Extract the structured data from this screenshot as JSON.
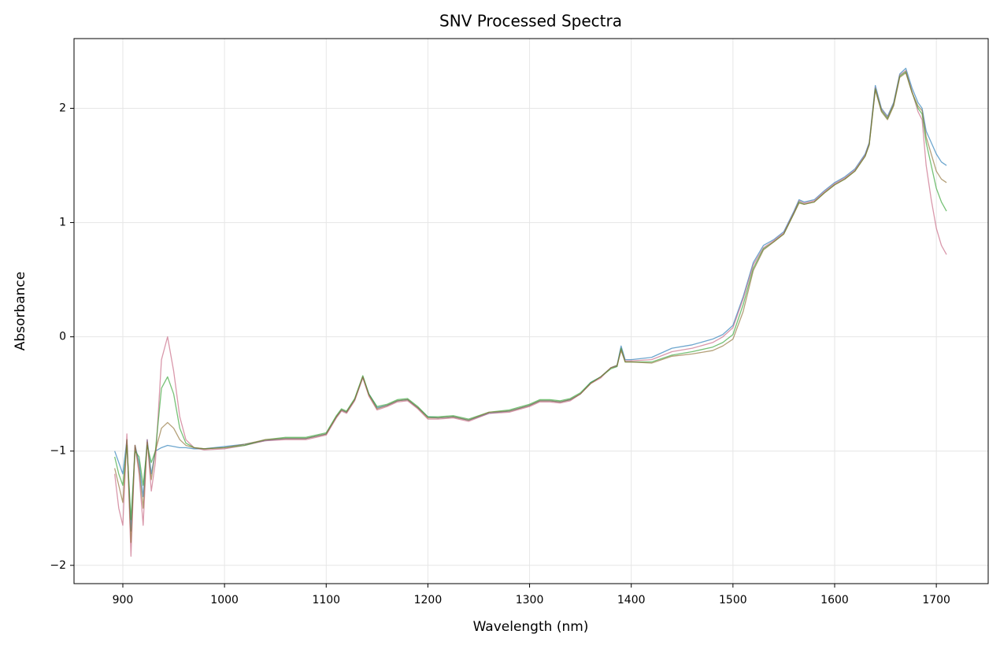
{
  "chart_data": {
    "type": "line",
    "title": "SNV Processed Spectra",
    "x_label": "Wavelength (nm)",
    "y_label": "Absorbance",
    "xlim": [
      852,
      1751
    ],
    "ylim": [
      -2.16,
      2.61
    ],
    "xticks": [
      900,
      1000,
      1100,
      1200,
      1300,
      1400,
      1500,
      1600,
      1700
    ],
    "yticks": [
      {
        "value": -2,
        "label": "−2"
      },
      {
        "value": -1,
        "label": "−1"
      },
      0,
      1,
      2
    ],
    "grid": true,
    "x": [
      892,
      896,
      900,
      904,
      908,
      912,
      916,
      920,
      924,
      928,
      932,
      938,
      944,
      950,
      956,
      962,
      970,
      980,
      1000,
      1020,
      1040,
      1060,
      1080,
      1100,
      1110,
      1115,
      1120,
      1128,
      1136,
      1142,
      1150,
      1160,
      1170,
      1180,
      1190,
      1200,
      1210,
      1225,
      1240,
      1260,
      1280,
      1300,
      1310,
      1320,
      1330,
      1340,
      1350,
      1360,
      1370,
      1380,
      1386,
      1390,
      1394,
      1400,
      1420,
      1440,
      1460,
      1480,
      1490,
      1500,
      1510,
      1520,
      1530,
      1540,
      1550,
      1560,
      1565,
      1570,
      1580,
      1590,
      1600,
      1610,
      1620,
      1630,
      1634,
      1640,
      1646,
      1652,
      1658,
      1664,
      1670,
      1676,
      1682,
      1686,
      1690,
      1695,
      1700,
      1705,
      1710
    ],
    "series": [
      {
        "color": "#1f77b4",
        "values": [
          -1.0,
          -1.1,
          -1.2,
          -0.9,
          -1.7,
          -0.95,
          -1.1,
          -1.4,
          -0.9,
          -1.2,
          -1.0,
          -0.97,
          -0.95,
          -0.96,
          -0.97,
          -0.97,
          -0.98,
          -0.98,
          -0.96,
          -0.94,
          -0.91,
          -0.89,
          -0.89,
          -0.85,
          -0.7,
          -0.64,
          -0.66,
          -0.55,
          -0.35,
          -0.5,
          -0.62,
          -0.6,
          -0.56,
          -0.55,
          -0.62,
          -0.7,
          -0.71,
          -0.7,
          -0.73,
          -0.67,
          -0.65,
          -0.6,
          -0.56,
          -0.56,
          -0.57,
          -0.55,
          -0.5,
          -0.4,
          -0.35,
          -0.27,
          -0.25,
          -0.08,
          -0.2,
          -0.2,
          -0.18,
          -0.1,
          -0.07,
          -0.02,
          0.02,
          0.1,
          0.35,
          0.65,
          0.8,
          0.85,
          0.92,
          1.1,
          1.2,
          1.18,
          1.2,
          1.28,
          1.35,
          1.4,
          1.47,
          1.6,
          1.7,
          2.2,
          2.0,
          1.93,
          2.05,
          2.3,
          2.35,
          2.18,
          2.05,
          2.0,
          1.8,
          1.7,
          1.6,
          1.53,
          1.5
        ]
      },
      {
        "color": "#c5617e",
        "values": [
          -1.2,
          -1.5,
          -1.65,
          -0.85,
          -1.92,
          -0.95,
          -1.2,
          -1.65,
          -0.9,
          -1.35,
          -1.1,
          -0.2,
          0.0,
          -0.3,
          -0.7,
          -0.9,
          -0.97,
          -0.99,
          -0.98,
          -0.95,
          -0.91,
          -0.9,
          -0.9,
          -0.86,
          -0.71,
          -0.65,
          -0.67,
          -0.56,
          -0.36,
          -0.52,
          -0.64,
          -0.61,
          -0.57,
          -0.56,
          -0.63,
          -0.72,
          -0.72,
          -0.71,
          -0.74,
          -0.67,
          -0.66,
          -0.61,
          -0.57,
          -0.57,
          -0.58,
          -0.56,
          -0.5,
          -0.41,
          -0.36,
          -0.27,
          -0.26,
          -0.1,
          -0.21,
          -0.21,
          -0.2,
          -0.13,
          -0.1,
          -0.05,
          0.0,
          0.08,
          0.33,
          0.63,
          0.78,
          0.84,
          0.91,
          1.09,
          1.19,
          1.17,
          1.19,
          1.27,
          1.34,
          1.39,
          1.46,
          1.59,
          1.69,
          2.18,
          1.99,
          1.92,
          2.04,
          2.29,
          2.33,
          2.15,
          1.97,
          1.9,
          1.5,
          1.2,
          0.95,
          0.8,
          0.72
        ]
      },
      {
        "color": "#2ca02c",
        "values": [
          -1.05,
          -1.2,
          -1.3,
          -0.95,
          -1.6,
          -1.0,
          -1.05,
          -1.3,
          -0.95,
          -1.1,
          -1.0,
          -0.45,
          -0.35,
          -0.5,
          -0.8,
          -0.93,
          -0.97,
          -0.98,
          -0.97,
          -0.95,
          -0.9,
          -0.88,
          -0.88,
          -0.84,
          -0.69,
          -0.63,
          -0.65,
          -0.54,
          -0.34,
          -0.5,
          -0.61,
          -0.59,
          -0.55,
          -0.54,
          -0.61,
          -0.7,
          -0.7,
          -0.69,
          -0.72,
          -0.66,
          -0.64,
          -0.59,
          -0.55,
          -0.55,
          -0.56,
          -0.54,
          -0.49,
          -0.4,
          -0.35,
          -0.28,
          -0.26,
          -0.1,
          -0.22,
          -0.22,
          -0.22,
          -0.16,
          -0.13,
          -0.09,
          -0.05,
          0.02,
          0.28,
          0.6,
          0.77,
          0.83,
          0.9,
          1.08,
          1.18,
          1.16,
          1.18,
          1.26,
          1.33,
          1.38,
          1.45,
          1.58,
          1.68,
          2.17,
          1.98,
          1.91,
          2.03,
          2.28,
          2.32,
          2.14,
          2.0,
          1.95,
          1.7,
          1.5,
          1.3,
          1.18,
          1.1
        ]
      },
      {
        "color": "#8c6d31",
        "values": [
          -1.15,
          -1.3,
          -1.45,
          -0.9,
          -1.8,
          -0.95,
          -1.15,
          -1.5,
          -0.92,
          -1.25,
          -1.0,
          -0.8,
          -0.75,
          -0.8,
          -0.9,
          -0.95,
          -0.97,
          -0.98,
          -0.97,
          -0.94,
          -0.9,
          -0.89,
          -0.89,
          -0.85,
          -0.7,
          -0.64,
          -0.66,
          -0.55,
          -0.35,
          -0.51,
          -0.63,
          -0.6,
          -0.56,
          -0.55,
          -0.62,
          -0.71,
          -0.71,
          -0.7,
          -0.73,
          -0.66,
          -0.65,
          -0.6,
          -0.56,
          -0.56,
          -0.57,
          -0.55,
          -0.5,
          -0.41,
          -0.35,
          -0.27,
          -0.25,
          -0.12,
          -0.22,
          -0.22,
          -0.23,
          -0.17,
          -0.15,
          -0.12,
          -0.08,
          -0.02,
          0.22,
          0.58,
          0.76,
          0.83,
          0.9,
          1.08,
          1.17,
          1.16,
          1.18,
          1.26,
          1.33,
          1.38,
          1.45,
          1.58,
          1.68,
          2.16,
          1.97,
          1.9,
          2.02,
          2.27,
          2.31,
          2.14,
          2.02,
          1.98,
          1.75,
          1.6,
          1.45,
          1.38,
          1.35
        ]
      }
    ]
  }
}
